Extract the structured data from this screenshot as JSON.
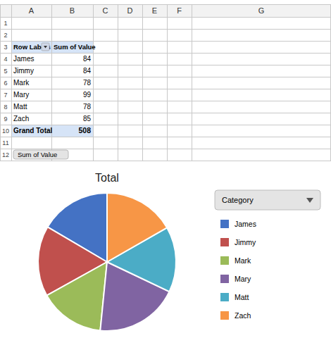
{
  "chart_data": [
    {
      "type": "pie",
      "title": "Total",
      "categories": [
        "James",
        "Jimmy",
        "Mark",
        "Mary",
        "Matt",
        "Zach"
      ],
      "values": [
        84,
        84,
        78,
        99,
        78,
        85
      ],
      "colors": [
        "#4472C4",
        "#C0504D",
        "#9BBB59",
        "#8064A2",
        "#4BACC6",
        "#F79646"
      ],
      "legend_title": "Category"
    },
    {
      "type": "table",
      "column_labels": [
        "A",
        "B",
        "C",
        "D",
        "E",
        "F",
        "G"
      ],
      "row_labels": [
        1,
        2,
        3,
        4,
        5,
        6,
        7,
        8,
        9,
        10,
        11,
        12
      ],
      "header": [
        "Row Labels",
        "Sum of Value"
      ],
      "categories": [
        "James",
        "Jimmy",
        "Mark",
        "Mary",
        "Matt",
        "Zach"
      ],
      "values": [
        84,
        84,
        78,
        99,
        78,
        85
      ],
      "total_label": "Grand Total",
      "total": 508,
      "annotations": [
        "Sum of Value"
      ]
    }
  ]
}
